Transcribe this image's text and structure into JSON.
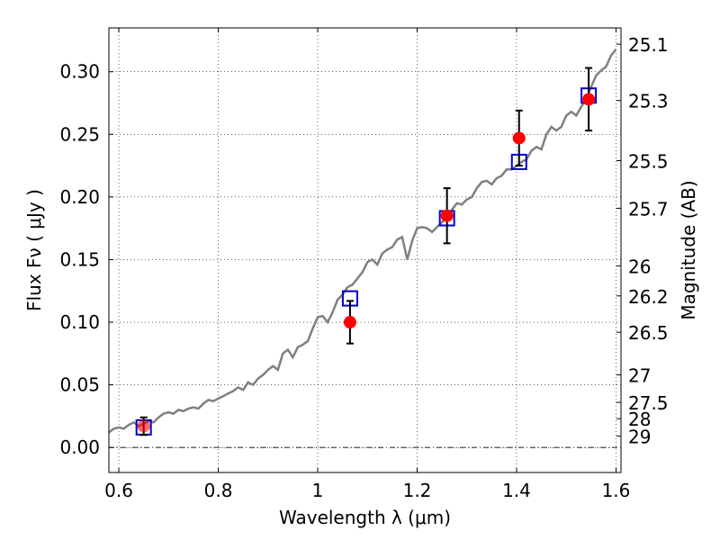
{
  "chart_data": {
    "type": "scatter",
    "xlabel": "Wavelength  λ (μm)",
    "ylabel": "Flux  Fν  ( μJy )",
    "y2label": "Magnitude (AB)",
    "xlim": [
      0.58,
      1.61
    ],
    "ylim": [
      -0.02,
      0.335
    ],
    "grid": true,
    "x_ticks": [
      0.6,
      0.8,
      1.0,
      1.2,
      1.4,
      1.6
    ],
    "x_tick_labels": [
      "0.6",
      "0.8",
      "1",
      "1.2",
      "1.4",
      "1.6"
    ],
    "y_ticks": [
      0.0,
      0.05,
      0.1,
      0.15,
      0.2,
      0.25,
      0.3
    ],
    "y_tick_labels": [
      "0.00",
      "0.05",
      "0.10",
      "0.15",
      "0.20",
      "0.25",
      "0.30"
    ],
    "mag_ticks": [
      {
        "label": "25.1",
        "flux": 0.322
      },
      {
        "label": "25.3",
        "flux": 0.277
      },
      {
        "label": "25.5",
        "flux": 0.229
      },
      {
        "label": "25.7",
        "flux": 0.191
      },
      {
        "label": "26",
        "flux": 0.145
      },
      {
        "label": "26.2",
        "flux": 0.121
      },
      {
        "label": "26.5",
        "flux": 0.092
      },
      {
        "label": "27",
        "flux": 0.058
      },
      {
        "label": "27.5",
        "flux": 0.036
      },
      {
        "label": "28",
        "flux": 0.023
      },
      {
        "label": "29",
        "flux": 0.009
      }
    ],
    "series": [
      {
        "kind": "spectrum",
        "color": "#808080",
        "x": [
          0.58,
          0.59,
          0.6,
          0.61,
          0.62,
          0.63,
          0.64,
          0.65,
          0.66,
          0.67,
          0.68,
          0.69,
          0.7,
          0.71,
          0.72,
          0.73,
          0.74,
          0.75,
          0.76,
          0.77,
          0.78,
          0.79,
          0.8,
          0.81,
          0.82,
          0.83,
          0.84,
          0.85,
          0.86,
          0.87,
          0.88,
          0.89,
          0.9,
          0.91,
          0.92,
          0.93,
          0.94,
          0.95,
          0.96,
          0.97,
          0.98,
          0.99,
          1.0,
          1.01,
          1.02,
          1.03,
          1.04,
          1.05,
          1.06,
          1.07,
          1.08,
          1.09,
          1.1,
          1.11,
          1.12,
          1.13,
          1.14,
          1.15,
          1.16,
          1.17,
          1.18,
          1.19,
          1.2,
          1.21,
          1.22,
          1.23,
          1.24,
          1.25,
          1.26,
          1.27,
          1.28,
          1.29,
          1.3,
          1.31,
          1.32,
          1.33,
          1.34,
          1.35,
          1.36,
          1.37,
          1.38,
          1.39,
          1.4,
          1.41,
          1.42,
          1.43,
          1.44,
          1.45,
          1.46,
          1.47,
          1.48,
          1.49,
          1.5,
          1.51,
          1.52,
          1.53,
          1.54,
          1.55,
          1.56,
          1.57,
          1.58,
          1.59,
          1.6
        ],
        "y": [
          0.012,
          0.015,
          0.016,
          0.015,
          0.018,
          0.02,
          0.017,
          0.019,
          0.021,
          0.02,
          0.024,
          0.027,
          0.028,
          0.027,
          0.03,
          0.029,
          0.031,
          0.032,
          0.031,
          0.035,
          0.038,
          0.037,
          0.039,
          0.041,
          0.043,
          0.045,
          0.048,
          0.046,
          0.052,
          0.05,
          0.055,
          0.058,
          0.062,
          0.065,
          0.062,
          0.075,
          0.078,
          0.072,
          0.08,
          0.082,
          0.085,
          0.095,
          0.104,
          0.105,
          0.1,
          0.108,
          0.118,
          0.122,
          0.128,
          0.13,
          0.135,
          0.14,
          0.148,
          0.15,
          0.146,
          0.155,
          0.158,
          0.16,
          0.166,
          0.168,
          0.15,
          0.165,
          0.175,
          0.176,
          0.175,
          0.172,
          0.176,
          0.18,
          0.183,
          0.19,
          0.195,
          0.194,
          0.198,
          0.2,
          0.207,
          0.212,
          0.213,
          0.21,
          0.215,
          0.217,
          0.222,
          0.222,
          0.225,
          0.228,
          0.23,
          0.237,
          0.24,
          0.238,
          0.25,
          0.256,
          0.253,
          0.256,
          0.265,
          0.268,
          0.265,
          0.272,
          0.278,
          0.288,
          0.297,
          0.301,
          0.304,
          0.313,
          0.318
        ]
      },
      {
        "kind": "model-squares",
        "color": "#0000cc",
        "x": [
          0.65,
          1.065,
          1.26,
          1.405,
          1.545
        ],
        "y": [
          0.016,
          0.119,
          0.183,
          0.228,
          0.281
        ]
      },
      {
        "kind": "observed-points",
        "color": "#ff0000",
        "x": [
          0.65,
          1.065,
          1.26,
          1.405,
          1.545
        ],
        "y": [
          0.017,
          0.1,
          0.185,
          0.247,
          0.278
        ],
        "err": [
          0.007,
          0.017,
          0.022,
          0.022,
          0.025
        ]
      }
    ],
    "zero_line": true
  }
}
